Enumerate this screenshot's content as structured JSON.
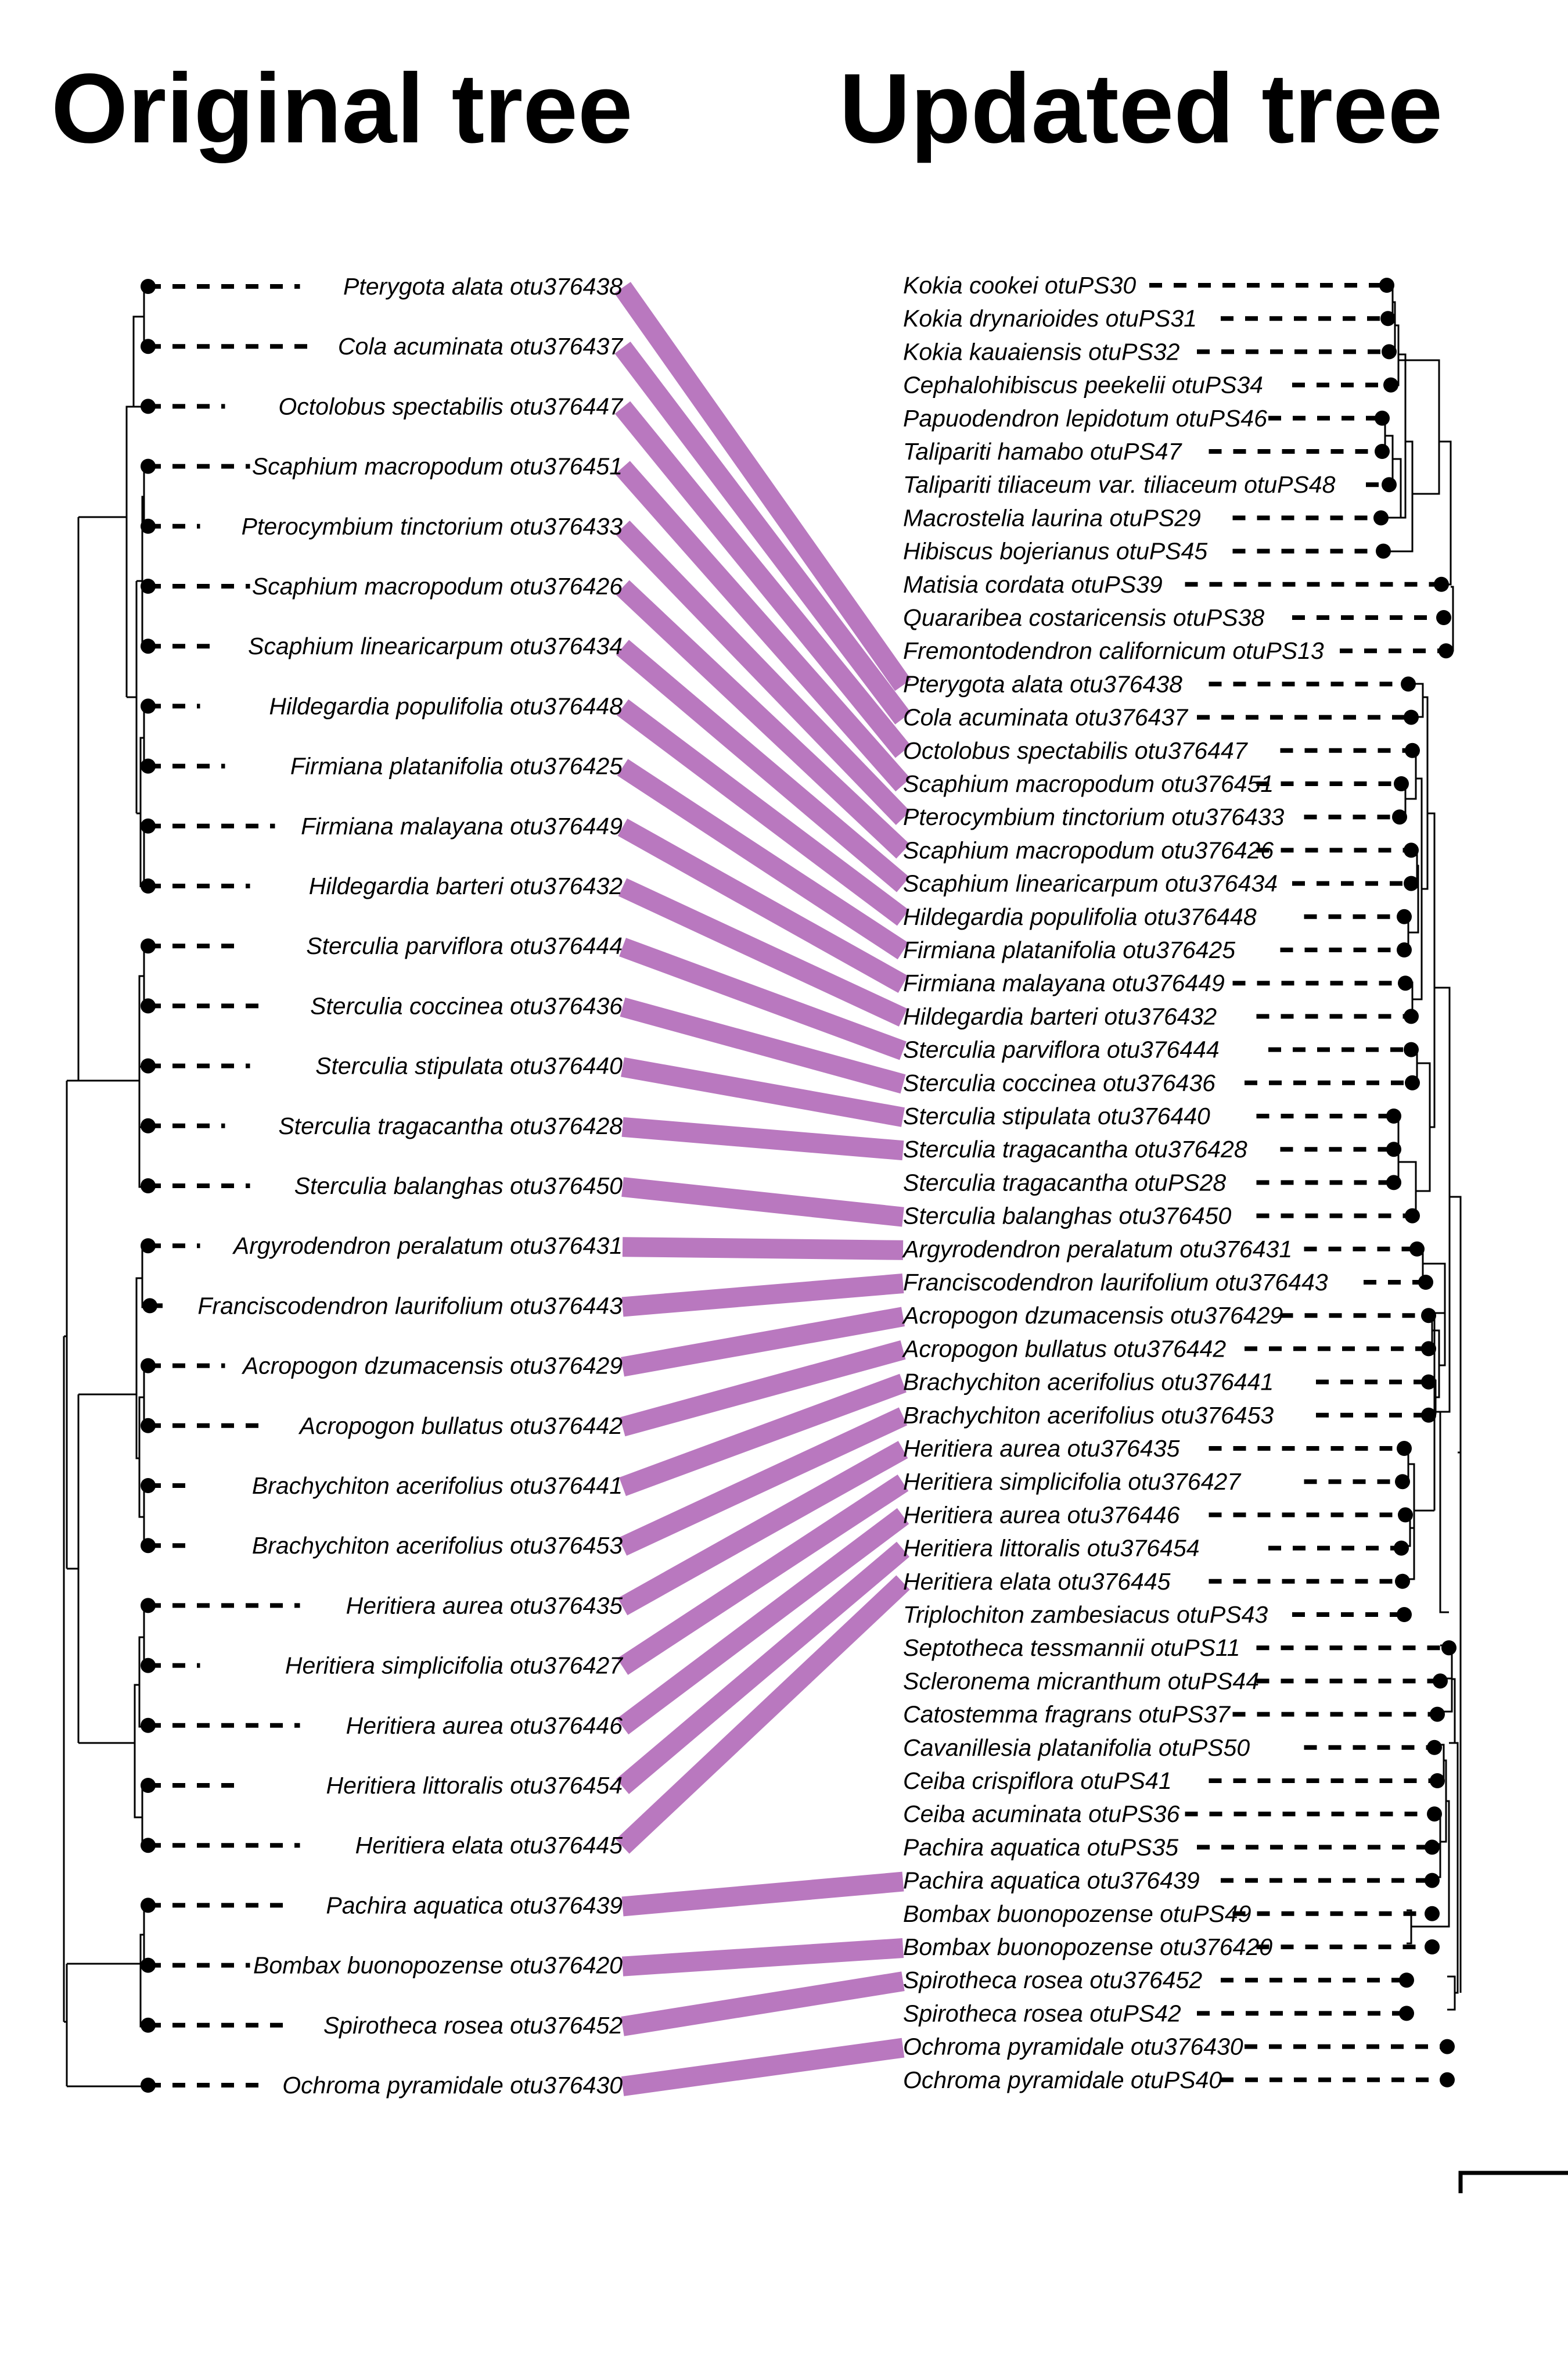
{
  "titles": {
    "left": "Original tree",
    "right": "Updated tree"
  },
  "colors": {
    "link": "#b978bf",
    "line": "#000000"
  },
  "left_tips": [
    "Pterygota alata otu376438",
    "Cola acuminata otu376437",
    "Octolobus spectabilis otu376447",
    "Scaphium macropodum otu376451",
    "Pterocymbium tinctorium otu376433",
    "Scaphium macropodum otu376426",
    "Scaphium linearicarpum otu376434",
    "Hildegardia populifolia otu376448",
    "Firmiana platanifolia otu376425",
    "Firmiana malayana otu376449",
    "Hildegardia barteri otu376432",
    "Sterculia parviflora otu376444",
    "Sterculia coccinea otu376436",
    "Sterculia stipulata otu376440",
    "Sterculia tragacantha otu376428",
    "Sterculia balanghas otu376450",
    "Argyrodendron peralatum otu376431",
    "Franciscodendron laurifolium otu376443",
    "Acropogon dzumacensis otu376429",
    "Acropogon bullatus otu376442",
    "Brachychiton acerifolius otu376441",
    "Brachychiton acerifolius otu376453",
    "Heritiera aurea otu376435",
    "Heritiera simplicifolia otu376427",
    "Heritiera aurea otu376446",
    "Heritiera littoralis otu376454",
    "Heritiera elata otu376445",
    "Pachira aquatica otu376439",
    "Bombax buonopozense otu376420",
    "Spirotheca rosea otu376452",
    "Ochroma pyramidale otu376430"
  ],
  "right_tips": [
    "Kokia cookei otuPS30",
    "Kokia drynarioides otuPS31",
    "Kokia kauaiensis otuPS32",
    "Cephalohibiscus peekelii otuPS34",
    "Papuodendron lepidotum otuPS46",
    "Talipariti hamabo otuPS47",
    "Talipariti tiliaceum var. tiliaceum otuPS48",
    "Macrostelia laurina otuPS29",
    "Hibiscus bojerianus otuPS45",
    "Matisia cordata otuPS39",
    "Quararibea costaricensis otuPS38",
    "Fremontodendron californicum otuPS13",
    "Pterygota alata otu376438",
    "Cola acuminata otu376437",
    "Octolobus spectabilis otu376447",
    "Scaphium macropodum otu376451",
    "Pterocymbium tinctorium otu376433",
    "Scaphium macropodum otu376426",
    "Scaphium linearicarpum otu376434",
    "Hildegardia populifolia otu376448",
    "Firmiana platanifolia otu376425",
    "Firmiana malayana otu376449",
    "Hildegardia barteri otu376432",
    "Sterculia parviflora otu376444",
    "Sterculia coccinea otu376436",
    "Sterculia stipulata otu376440",
    "Sterculia tragacantha otu376428",
    "Sterculia tragacantha otuPS28",
    "Sterculia balanghas otu376450",
    "Argyrodendron peralatum otu376431",
    "Franciscodendron laurifolium otu376443",
    "Acropogon dzumacensis otu376429",
    "Acropogon bullatus otu376442",
    "Brachychiton acerifolius otu376441",
    "Brachychiton acerifolius otu376453",
    "Heritiera aurea otu376435",
    "Heritiera simplicifolia otu376427",
    "Heritiera aurea otu376446",
    "Heritiera littoralis otu376454",
    "Heritiera elata otu376445",
    "Triplochiton zambesiacus otuPS43",
    "Septotheca tessmannii otuPS11",
    "Scleronema micranthum otuPS44",
    "Catostemma fragrans otuPS37",
    "Cavanillesia platanifolia otuPS50",
    "Ceiba crispiflora otuPS41",
    "Ceiba acuminata otuPS36",
    "Pachira aquatica otuPS35",
    "Pachira aquatica otu376439",
    "Bombax buonopozense otuPS49",
    "Bombax buonopozense otu376420",
    "Spirotheca rosea otu376452",
    "Spirotheca rosea otuPS42",
    "Ochroma pyramidale otu376430",
    "Ochroma pyramidale otuPS40"
  ]
}
